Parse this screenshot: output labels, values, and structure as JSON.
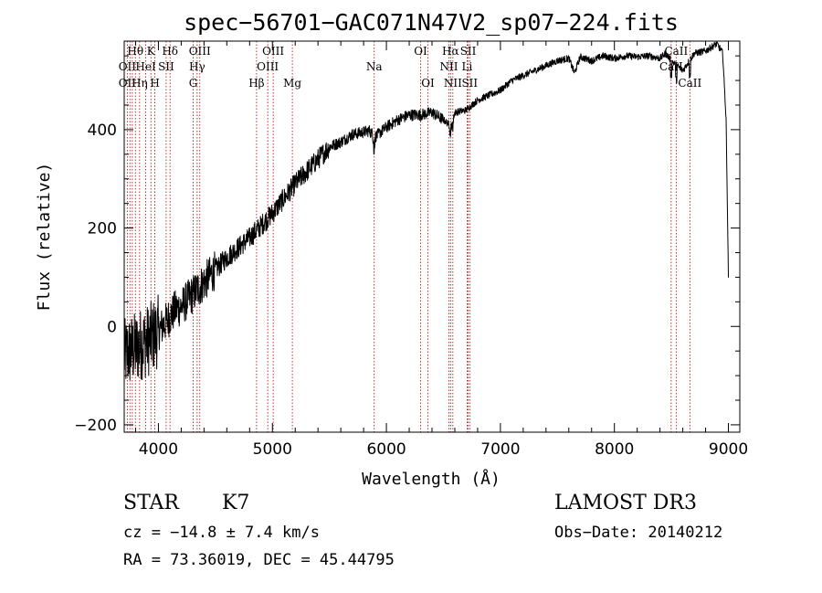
{
  "chart_data": {
    "type": "line",
    "title": "spec−56701−GAC071N47V2_sp07−224.fits",
    "xlabel": "Wavelength (Å)",
    "ylabel": "Flux (relative)",
    "xlim": [
      3700,
      9100
    ],
    "ylim": [
      -215,
      580
    ],
    "x_ticks": [
      4000,
      5000,
      6000,
      7000,
      8000,
      9000
    ],
    "y_ticks": [
      -200,
      0,
      200,
      400
    ],
    "series": [
      {
        "name": "flux",
        "x": [
          3700,
          3750,
          3800,
          3850,
          3900,
          3950,
          4000,
          4050,
          4100,
          4150,
          4200,
          4300,
          4400,
          4500,
          4600,
          4700,
          4800,
          4900,
          5000,
          5100,
          5200,
          5300,
          5400,
          5500,
          5600,
          5700,
          5800,
          5850,
          5900,
          5950,
          6000,
          6100,
          6200,
          6300,
          6400,
          6500,
          6563,
          6600,
          6700,
          6800,
          6900,
          7000,
          7100,
          7200,
          7300,
          7400,
          7500,
          7600,
          7650,
          7700,
          7800,
          7900,
          8000,
          8100,
          8200,
          8300,
          8400,
          8450,
          8500,
          8600,
          8700,
          8800,
          8900,
          8950,
          8980,
          9000
        ],
        "y": [
          -60,
          -50,
          -45,
          -35,
          -30,
          -20,
          -10,
          5,
          20,
          35,
          40,
          65,
          90,
          115,
          140,
          160,
          180,
          205,
          230,
          260,
          290,
          315,
          340,
          365,
          375,
          390,
          395,
          398,
          385,
          395,
          405,
          420,
          430,
          430,
          435,
          420,
          408,
          435,
          440,
          460,
          470,
          480,
          500,
          510,
          520,
          530,
          540,
          545,
          515,
          548,
          540,
          550,
          545,
          550,
          548,
          550,
          545,
          555,
          540,
          520,
          555,
          560,
          575,
          555,
          420,
          100
        ]
      }
    ],
    "lines": [
      {
        "label": "Hθ",
        "wave": 3798,
        "row": 0
      },
      {
        "label": "K",
        "wave": 3934,
        "row": 0
      },
      {
        "label": "Hδ",
        "wave": 4102,
        "row": 0
      },
      {
        "label": "OIII",
        "wave": 4363,
        "row": 0
      },
      {
        "label": "OIII",
        "wave": 5007,
        "row": 0
      },
      {
        "label": "OI",
        "wave": 6300,
        "row": 0
      },
      {
        "label": "Hα",
        "wave": 6563,
        "row": 0
      },
      {
        "label": "SII",
        "wave": 6717,
        "row": 0
      },
      {
        "label": "CaII",
        "wave": 8542,
        "row": 0
      },
      {
        "label": "OII",
        "wave": 3727,
        "row": 1
      },
      {
        "label": "HeI",
        "wave": 3889,
        "row": 1
      },
      {
        "label": "SII",
        "wave": 4068,
        "row": 1
      },
      {
        "label": "Hγ",
        "wave": 4340,
        "row": 1
      },
      {
        "label": "OIII",
        "wave": 4959,
        "row": 1
      },
      {
        "label": "Na",
        "wave": 5893,
        "row": 1
      },
      {
        "label": "NII",
        "wave": 6548,
        "row": 1
      },
      {
        "label": "Li",
        "wave": 6708,
        "row": 1
      },
      {
        "label": "CaII",
        "wave": 8498,
        "row": 1
      },
      {
        "label": "OII",
        "wave": 3727,
        "row": 2
      },
      {
        "label": "Hη",
        "wave": 3835,
        "row": 2
      },
      {
        "label": "H",
        "wave": 3969,
        "row": 2
      },
      {
        "label": "G",
        "wave": 4305,
        "row": 2
      },
      {
        "label": "Hβ",
        "wave": 4861,
        "row": 2
      },
      {
        "label": "Mg",
        "wave": 5175,
        "row": 2
      },
      {
        "label": "OI",
        "wave": 6364,
        "row": 2
      },
      {
        "label": "NII",
        "wave": 6583,
        "row": 2
      },
      {
        "label": "SII",
        "wave": 6731,
        "row": 2
      },
      {
        "label": "CaII",
        "wave": 8662,
        "row": 2
      }
    ],
    "extra_line_waves": [
      3750,
      3771,
      3889,
      6548,
      6583,
      8542
    ],
    "colors": {
      "spectrum": "#000000",
      "lines": "#b00000",
      "axes": "#000000"
    }
  },
  "info": {
    "object_class": "STAR",
    "subclass": "K7",
    "survey": "LAMOST DR3",
    "cz": "cz = −14.8 ± 7.4 km/s",
    "obs_date": "Obs−Date: 20140212",
    "coords": "RA =  73.36019, DEC =  45.44795"
  }
}
